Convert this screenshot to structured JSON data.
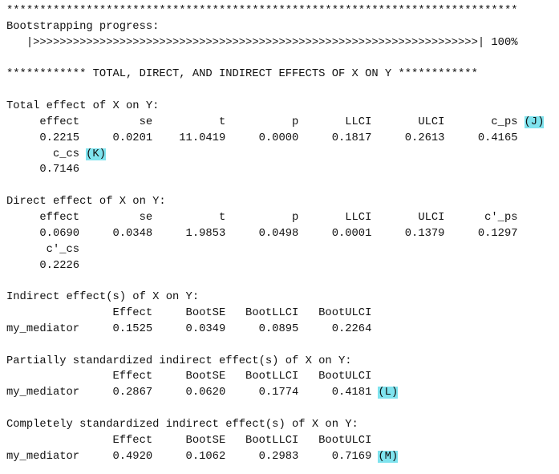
{
  "blocks": [
    [
      {
        "text": "*****************************************************************************"
      },
      {
        "text": "Bootstrapping progress:"
      },
      {
        "text": "   |>>>>>>>>>>>>>>>>>>>>>>>>>>>>>>>>>>>>>>>>>>>>>>>>>>>>>>>>>>>>>>>>>>>| 100%"
      }
    ],
    [
      {
        "text": "************ TOTAL, DIRECT, AND INDIRECT EFFECTS OF X ON Y ************"
      }
    ],
    [
      {
        "text": "Total effect of X on Y:"
      },
      {
        "text": "     effect         se          t          p       LLCI       ULCI       c_ps",
        "tag": "(J)"
      },
      {
        "text": "     0.2215     0.0201    11.0419     0.0000     0.1817     0.2613     0.4165"
      },
      {
        "text": "       c_cs",
        "tag": "(K)"
      },
      {
        "text": "     0.7146"
      }
    ],
    [
      {
        "text": "Direct effect of X on Y:"
      },
      {
        "text": "     effect         se          t          p       LLCI       ULCI      c'_ps"
      },
      {
        "text": "     0.0690     0.0348     1.9853     0.0498     0.0001     0.1379     0.1297"
      },
      {
        "text": "      c'_cs"
      },
      {
        "text": "     0.2226"
      }
    ],
    [
      {
        "text": "Indirect effect(s) of X on Y:"
      },
      {
        "text": "                Effect     BootSE   BootLLCI   BootULCI"
      },
      {
        "text": "my_mediator     0.1525     0.0349     0.0895     0.2264"
      }
    ],
    [
      {
        "text": "Partially standardized indirect effect(s) of X on Y:"
      },
      {
        "text": "                Effect     BootSE   BootLLCI   BootULCI"
      },
      {
        "text": "my_mediator     0.2867     0.0620     0.1774     0.4181",
        "tag": "(L)"
      }
    ],
    [
      {
        "text": "Completely standardized indirect effect(s) of X on Y:"
      },
      {
        "text": "                Effect     BootSE   BootLLCI   BootULCI"
      },
      {
        "text": "my_mediator     0.4920     0.1062     0.2983     0.7169",
        "tag": "(M)"
      }
    ]
  ]
}
